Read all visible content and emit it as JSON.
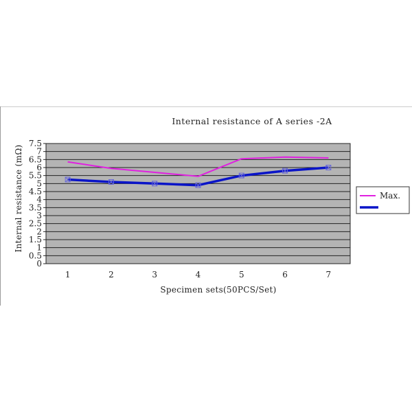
{
  "chart_data": {
    "type": "line",
    "title": "Internal resistance of A series -2A",
    "xlabel": "Specimen sets(50PCS/Set)",
    "ylabel": "Internal resistance (mΩ)",
    "categories": [
      "1",
      "2",
      "3",
      "4",
      "5",
      "6",
      "7"
    ],
    "y_ticks": [
      "0",
      "0.5",
      "1",
      "1.5",
      "2",
      "2.5",
      "3",
      "3.5",
      "4",
      "4.5",
      "5",
      "5.5",
      "6",
      "6.5",
      "7",
      "7.5"
    ],
    "ylim": [
      0,
      7.5
    ],
    "grid": true,
    "legend_position": "right",
    "series": [
      {
        "name": "Max.",
        "values": [
          6.35,
          5.95,
          5.7,
          5.45,
          6.55,
          6.65,
          6.6
        ],
        "color": "#e020e0",
        "marker": "none"
      },
      {
        "name": "",
        "values": [
          5.25,
          5.1,
          5.0,
          4.9,
          5.5,
          5.8,
          6.0
        ],
        "color": "#0a14c8",
        "marker": "x"
      }
    ],
    "plot_background": "#b4b4b4",
    "grid_color": "#222222"
  }
}
